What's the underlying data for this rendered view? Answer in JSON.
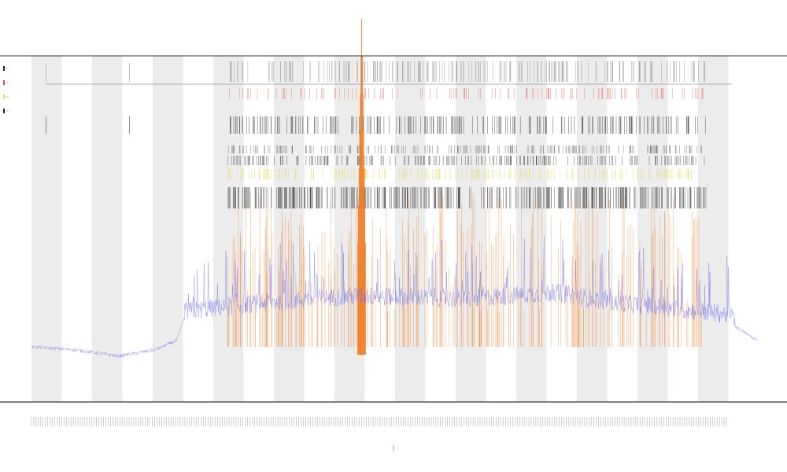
{
  "chart_data": {
    "type": "line",
    "title": "",
    "subtitles": [],
    "xlabel": "",
    "ylabel": "",
    "grid": false,
    "background_bands": true,
    "colors": {
      "main_series": "#6d6df0",
      "orange_series": "#f07a1e",
      "event_red": "#e04a4a",
      "event_dark": "#222222",
      "event_yellow": "#e0e04a",
      "band": "#ececec",
      "axis": "#333333"
    },
    "series": [
      {
        "color": "#6d6df0",
        "segments_description_free": true,
        "baseline_profile": [
          [
            0,
            0.05
          ],
          [
            0.06,
            0.04
          ],
          [
            0.12,
            0.02
          ],
          [
            0.17,
            0.04
          ],
          [
            0.2,
            0.07
          ],
          [
            0.21,
            0.14
          ],
          [
            0.33,
            0.17
          ],
          [
            0.45,
            0.19
          ],
          [
            0.6,
            0.18
          ],
          [
            0.72,
            0.2
          ],
          [
            0.8,
            0.17
          ],
          [
            0.88,
            0.15
          ],
          [
            0.96,
            0.13
          ],
          [
            1.0,
            0.07
          ]
        ]
      },
      {
        "color": "#f07a1e",
        "peak_position": 0.455,
        "peak_value": 0.97
      }
    ],
    "event_rows": [
      {
        "color": "#888888",
        "row": 0
      },
      {
        "color": "#e04a4a",
        "row": 1
      },
      {
        "color": "#222222",
        "row": 2
      },
      {
        "color": "#555555",
        "row": 3
      },
      {
        "color": "#444444",
        "row": 4
      },
      {
        "color": "#e0e04a",
        "row": 5
      },
      {
        "color": "#333333",
        "row": 6
      }
    ]
  }
}
